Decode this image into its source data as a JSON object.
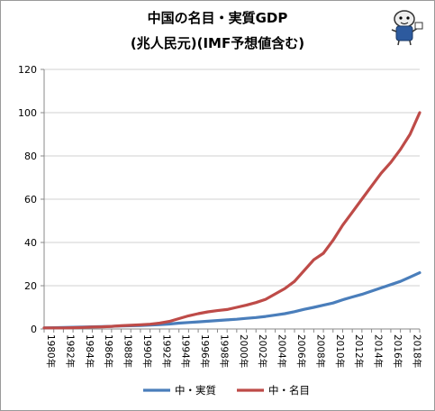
{
  "chart_data": {
    "type": "line",
    "title_line1": "中国の名目・実質GDP",
    "title_line2": "(兆人民元)(IMF予想値含む)",
    "xlabel": "",
    "ylabel": "",
    "ylim": [
      0,
      120
    ],
    "y_ticks": [
      0,
      20,
      40,
      60,
      80,
      100,
      120
    ],
    "x_tick_labels": [
      "1980年",
      "1982年",
      "1984年",
      "1986年",
      "1988年",
      "1990年",
      "1992年",
      "1994年",
      "1996年",
      "1998年",
      "2000年",
      "2002年",
      "2004年",
      "2006年",
      "2008年",
      "2010年",
      "2012年",
      "2014年",
      "2016年",
      "2018年"
    ],
    "grid": "horizontal",
    "legend_position": "bottom",
    "x": [
      1980,
      1981,
      1982,
      1983,
      1984,
      1985,
      1986,
      1987,
      1988,
      1989,
      1990,
      1991,
      1992,
      1993,
      1994,
      1995,
      1996,
      1997,
      1998,
      1999,
      2000,
      2001,
      2002,
      2003,
      2004,
      2005,
      2006,
      2007,
      2008,
      2009,
      2010,
      2011,
      2012,
      2013,
      2014,
      2015,
      2016,
      2017,
      2018,
      2019
    ],
    "series": [
      {
        "name": "中・実質",
        "color": "#4a7ebb",
        "values": [
          0.5,
          0.6,
          0.7,
          0.8,
          0.9,
          1.0,
          1.1,
          1.2,
          1.4,
          1.5,
          1.6,
          1.8,
          2.0,
          2.3,
          2.7,
          3.0,
          3.3,
          3.6,
          3.9,
          4.2,
          4.5,
          4.9,
          5.3,
          5.8,
          6.4,
          7.1,
          8.0,
          9.1,
          10.0,
          11.0,
          12.0,
          13.5,
          14.8,
          16.0,
          17.5,
          19.0,
          20.5,
          22.0,
          24.0,
          26.0
        ]
      },
      {
        "name": "中・名目",
        "color": "#be4b48",
        "values": [
          0.5,
          0.5,
          0.5,
          0.6,
          0.7,
          0.9,
          1.0,
          1.2,
          1.5,
          1.7,
          1.9,
          2.2,
          2.7,
          3.5,
          4.8,
          6.1,
          7.1,
          7.9,
          8.5,
          9.0,
          10.0,
          11.0,
          12.2,
          13.7,
          16.2,
          18.7,
          22.0,
          27.0,
          32.0,
          35.0,
          41.0,
          48.0,
          54.0,
          60.0,
          66.0,
          72.0,
          77.0,
          83.0,
          90.0,
          100.0
        ]
      }
    ]
  }
}
